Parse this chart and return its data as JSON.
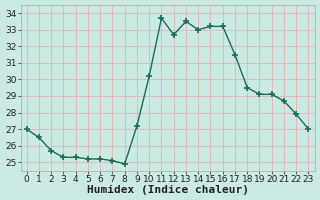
{
  "x": [
    0,
    1,
    2,
    3,
    4,
    5,
    6,
    7,
    8,
    9,
    10,
    11,
    12,
    13,
    14,
    15,
    16,
    17,
    18,
    19,
    20,
    21,
    22,
    23
  ],
  "y": [
    27.0,
    26.5,
    25.7,
    25.3,
    25.3,
    25.2,
    25.2,
    25.1,
    24.9,
    27.2,
    30.2,
    33.7,
    32.7,
    33.5,
    33.0,
    33.2,
    33.2,
    31.5,
    29.5,
    29.1,
    29.1,
    28.7,
    27.9,
    27.0
  ],
  "line_color": "#1a6b5a",
  "marker": "+",
  "marker_size": 4,
  "marker_linewidth": 1.2,
  "bg_color": "#cceae4",
  "grid_color": "#ddbbbb",
  "xlabel": "Humidex (Indice chaleur)",
  "ylabel": "",
  "title": "",
  "xlim": [
    -0.5,
    23.5
  ],
  "ylim": [
    24.5,
    34.5
  ],
  "yticks": [
    25,
    26,
    27,
    28,
    29,
    30,
    31,
    32,
    33,
    34
  ],
  "xticks": [
    0,
    1,
    2,
    3,
    4,
    5,
    6,
    7,
    8,
    9,
    10,
    11,
    12,
    13,
    14,
    15,
    16,
    17,
    18,
    19,
    20,
    21,
    22,
    23
  ],
  "tick_fontsize": 6.5,
  "xlabel_fontsize": 8,
  "linewidth": 1.0
}
